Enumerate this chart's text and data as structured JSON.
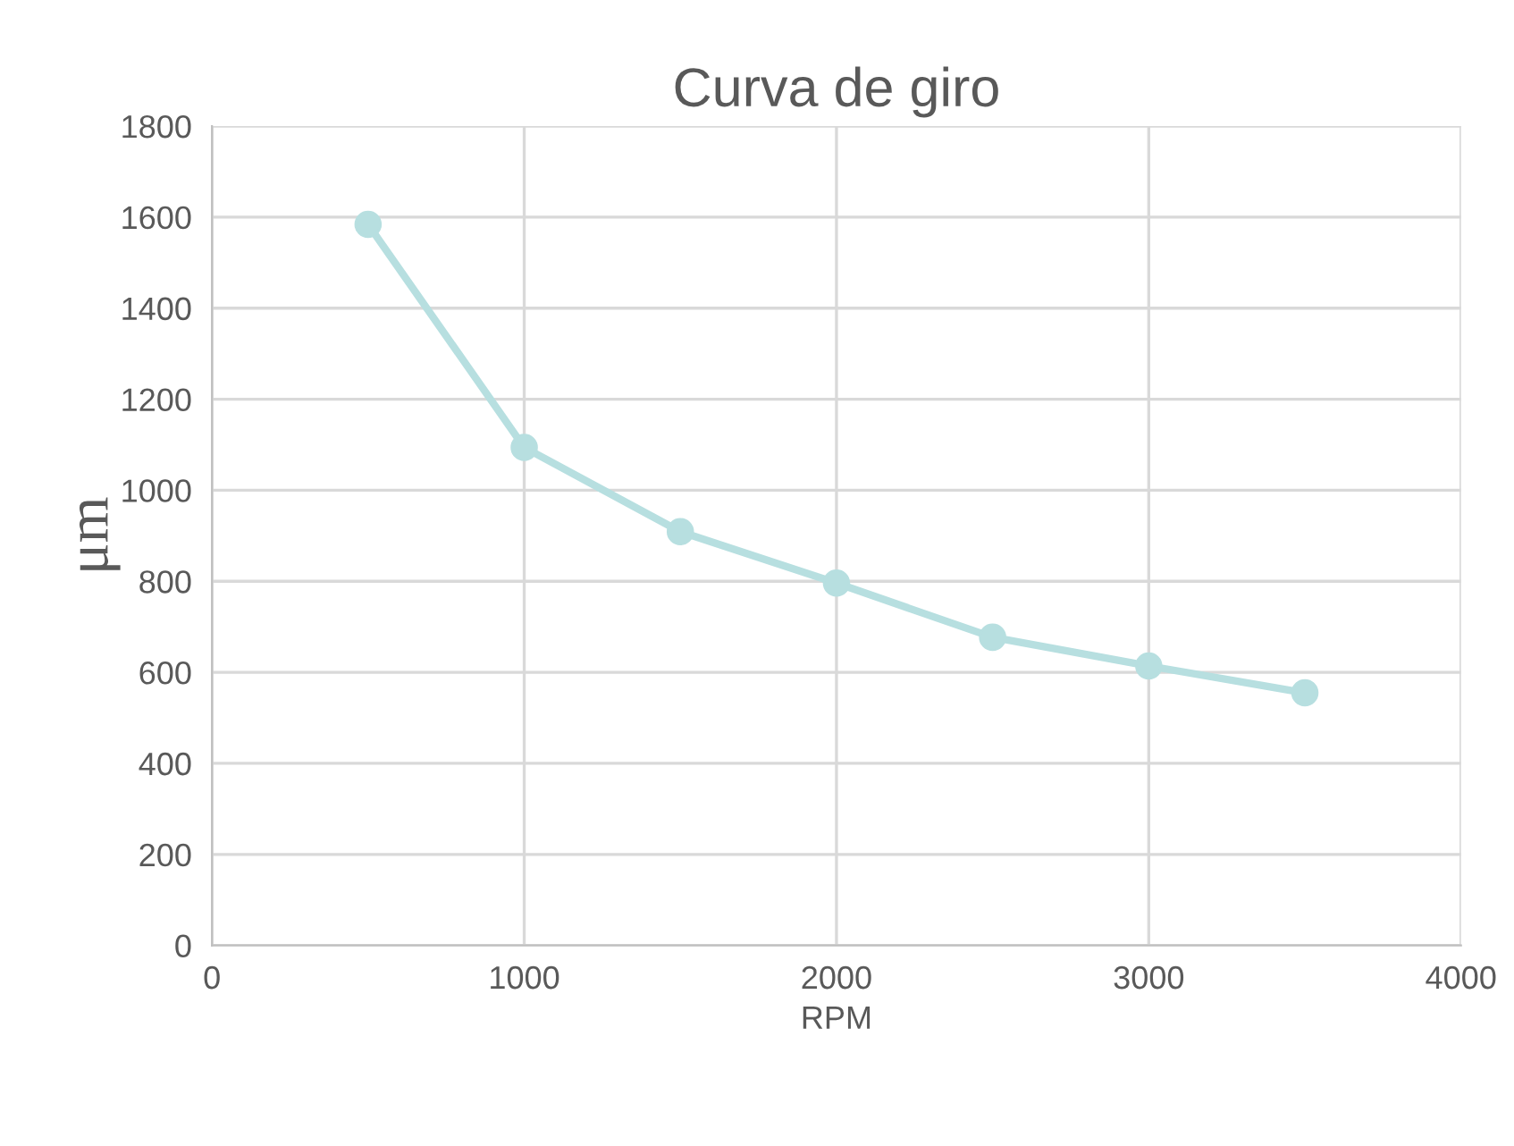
{
  "chart_data": {
    "type": "line",
    "title": "Curva de giro",
    "xlabel": "RPM",
    "ylabel": "μm",
    "x": [
      500,
      1000,
      1500,
      2000,
      2500,
      3000,
      3500
    ],
    "series": [
      {
        "color": "#b7dfe0",
        "values": [
          1584,
          1094,
          909,
          796,
          677,
          614,
          555
        ]
      }
    ],
    "xlim": [
      0,
      4000
    ],
    "xticks": [
      0,
      1000,
      2000,
      3000,
      4000
    ],
    "ylim": [
      0,
      1800
    ],
    "yticks": [
      0,
      200,
      400,
      600,
      800,
      1000,
      1200,
      1400,
      1600,
      1800
    ],
    "grid": true,
    "marker": "circle",
    "line_style": "solid",
    "legend": false
  }
}
